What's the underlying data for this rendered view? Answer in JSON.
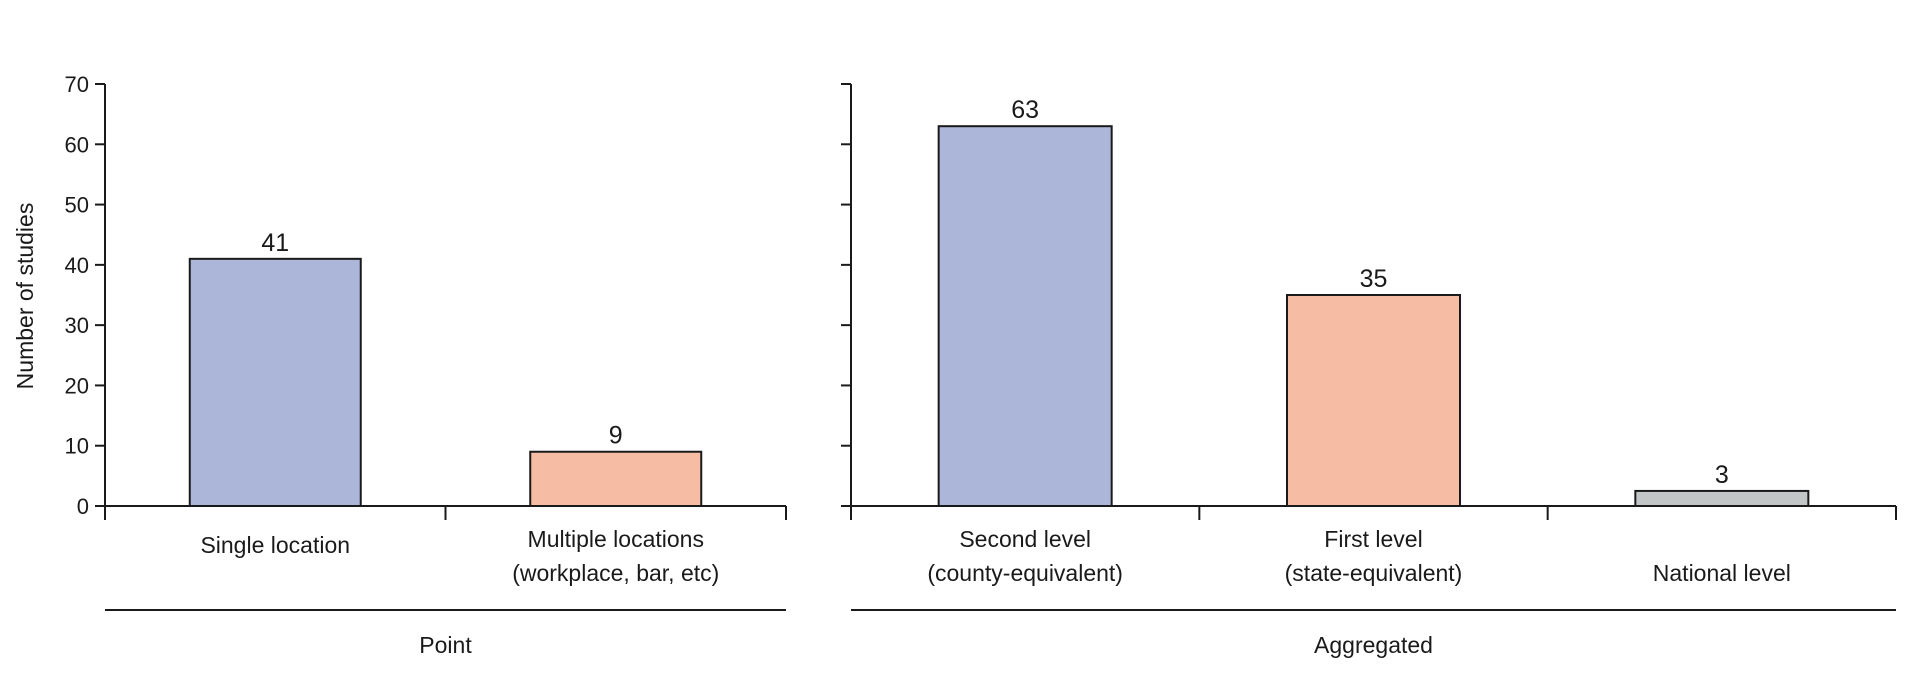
{
  "chart_data": {
    "type": "bar",
    "ylabel": "Number of studies",
    "ylim": [
      0,
      70
    ],
    "yticks": [
      0,
      10,
      20,
      30,
      40,
      50,
      60,
      70
    ],
    "grid": false,
    "colors": {
      "blue": "#acb6d9",
      "salmon": "#f7bca4",
      "gray": "#c3c6c7",
      "stroke": "#1a1a1a"
    },
    "panels": [
      {
        "group": "Point",
        "categories": [
          {
            "lines": [
              "Single location"
            ],
            "value": 41,
            "label": "41",
            "color": "blue"
          },
          {
            "lines": [
              "Multiple locations",
              "(workplace, bar, etc)"
            ],
            "value": 9,
            "label": "9",
            "color": "salmon"
          }
        ]
      },
      {
        "group": "Aggregated",
        "categories": [
          {
            "lines": [
              "Second level",
              "(county-equivalent)"
            ],
            "value": 63,
            "label": "63",
            "color": "blue"
          },
          {
            "lines": [
              "First level",
              "(state-equivalent)"
            ],
            "value": 35,
            "label": "35",
            "color": "salmon"
          },
          {
            "lines": [
              "National level"
            ],
            "value": 2.5,
            "label": "3",
            "color": "gray"
          }
        ]
      }
    ]
  }
}
